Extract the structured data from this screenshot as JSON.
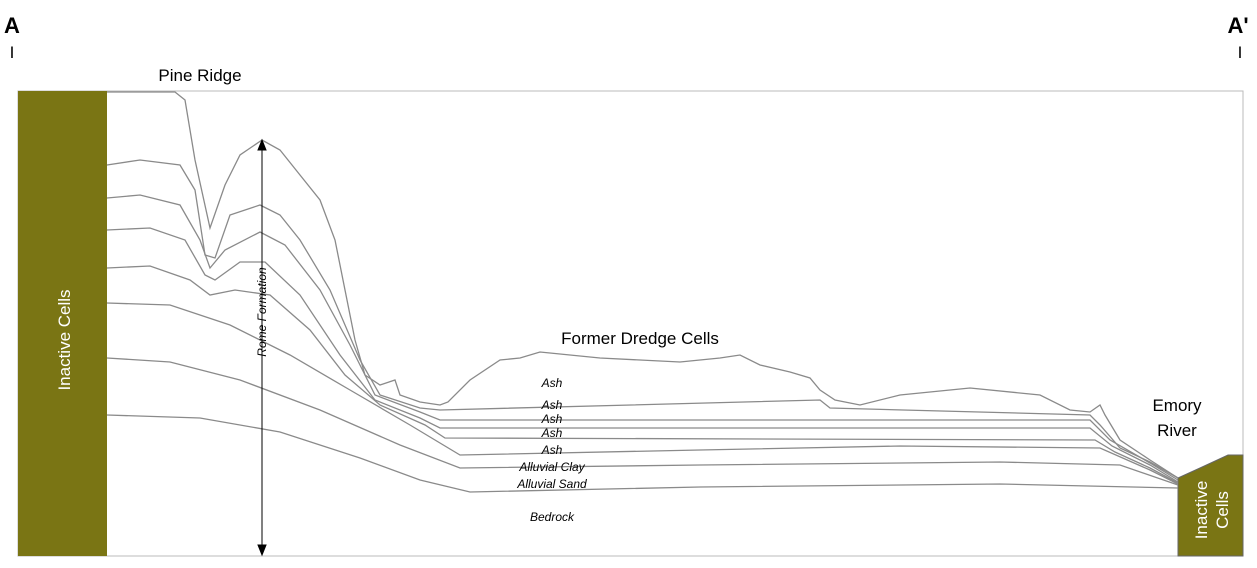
{
  "section": {
    "start": "A",
    "end": "A'",
    "start_marker": "I",
    "end_marker": "I"
  },
  "labels": {
    "pine_ridge": "Pine Ridge",
    "inactive_left": "Inactive Cells",
    "inactive_right_1": "Inactive",
    "inactive_right_2": "Cells",
    "rome": "Rome Formation",
    "dredge": "Former Dredge Cells",
    "emory_1": "Emory",
    "emory_2": "River"
  },
  "layers": [
    "Ash",
    "Ash",
    "Ash",
    "Ash",
    "Ash",
    "Alluvial Clay",
    "Alluvial Sand",
    "Bedrock"
  ]
}
